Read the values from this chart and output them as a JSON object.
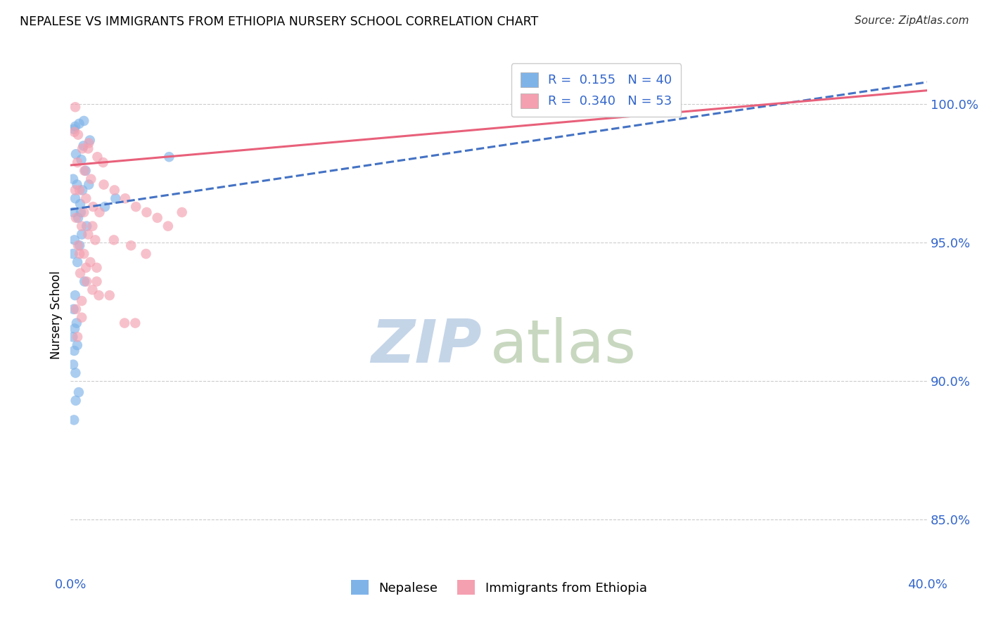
{
  "title": "NEPALESE VS IMMIGRANTS FROM ETHIOPIA NURSERY SCHOOL CORRELATION CHART",
  "source": "Source: ZipAtlas.com",
  "ylabel": "Nursery School",
  "ytick_vals": [
    85.0,
    90.0,
    95.0,
    100.0
  ],
  "xlim": [
    0.0,
    40.0
  ],
  "ylim": [
    83.0,
    101.8
  ],
  "legend_blue_R": "0.155",
  "legend_blue_N": "40",
  "legend_pink_R": "0.340",
  "legend_pink_N": "53",
  "legend_label_blue": "Nepalese",
  "legend_label_pink": "Immigrants from Ethiopia",
  "color_blue": "#7EB3E8",
  "color_pink": "#F4A0B0",
  "color_blue_line": "#4472C4",
  "color_pink_line": "#E8607A",
  "watermark_zip": "ZIP",
  "watermark_atlas": "atlas",
  "watermark_color_zip": "#C5D5E8",
  "watermark_color_atlas": "#C8D8C0",
  "blue_line_x": [
    0.0,
    40.0
  ],
  "blue_line_y": [
    96.2,
    100.8
  ],
  "pink_line_x": [
    0.0,
    40.0
  ],
  "pink_line_y": [
    97.8,
    100.5
  ],
  "blue_points": [
    [
      0.15,
      99.1
    ],
    [
      0.4,
      99.3
    ],
    [
      0.6,
      98.5
    ],
    [
      0.9,
      98.7
    ],
    [
      0.25,
      98.2
    ],
    [
      0.5,
      98.0
    ],
    [
      0.7,
      97.6
    ],
    [
      0.12,
      97.3
    ],
    [
      0.3,
      97.1
    ],
    [
      0.55,
      96.9
    ],
    [
      0.22,
      96.6
    ],
    [
      0.45,
      96.4
    ],
    [
      0.13,
      96.1
    ],
    [
      0.35,
      95.9
    ],
    [
      0.75,
      95.6
    ],
    [
      0.52,
      95.3
    ],
    [
      0.18,
      95.1
    ],
    [
      0.42,
      94.9
    ],
    [
      0.11,
      94.6
    ],
    [
      0.32,
      94.3
    ],
    [
      0.65,
      93.6
    ],
    [
      0.21,
      93.1
    ],
    [
      0.14,
      92.6
    ],
    [
      0.28,
      92.1
    ],
    [
      0.19,
      91.9
    ],
    [
      0.1,
      91.6
    ],
    [
      0.31,
      91.3
    ],
    [
      0.17,
      91.1
    ],
    [
      0.12,
      90.6
    ],
    [
      0.23,
      90.3
    ],
    [
      0.38,
      89.6
    ],
    [
      0.24,
      89.3
    ],
    [
      0.16,
      88.6
    ],
    [
      1.6,
      96.3
    ],
    [
      2.1,
      96.6
    ],
    [
      0.22,
      99.2
    ],
    [
      0.62,
      99.4
    ],
    [
      0.85,
      97.1
    ],
    [
      0.48,
      96.1
    ],
    [
      4.6,
      98.1
    ]
  ],
  "pink_points": [
    [
      0.22,
      99.9
    ],
    [
      0.18,
      99.0
    ],
    [
      0.55,
      98.4
    ],
    [
      0.85,
      98.6
    ],
    [
      1.25,
      98.1
    ],
    [
      0.32,
      97.9
    ],
    [
      0.65,
      97.6
    ],
    [
      0.95,
      97.3
    ],
    [
      1.55,
      97.1
    ],
    [
      0.42,
      96.9
    ],
    [
      0.72,
      96.6
    ],
    [
      1.05,
      96.3
    ],
    [
      1.35,
      96.1
    ],
    [
      0.25,
      95.9
    ],
    [
      0.52,
      95.6
    ],
    [
      0.82,
      95.3
    ],
    [
      1.15,
      95.1
    ],
    [
      0.35,
      94.9
    ],
    [
      0.62,
      94.6
    ],
    [
      0.92,
      94.3
    ],
    [
      1.22,
      94.1
    ],
    [
      0.45,
      93.9
    ],
    [
      0.75,
      93.6
    ],
    [
      1.02,
      93.3
    ],
    [
      1.32,
      93.1
    ],
    [
      2.05,
      96.9
    ],
    [
      2.55,
      96.6
    ],
    [
      3.05,
      96.3
    ],
    [
      3.55,
      96.1
    ],
    [
      4.05,
      95.9
    ],
    [
      4.55,
      95.6
    ],
    [
      0.25,
      92.6
    ],
    [
      0.52,
      92.3
    ],
    [
      2.52,
      92.1
    ],
    [
      3.02,
      92.1
    ],
    [
      5.2,
      96.1
    ],
    [
      22.5,
      100.4
    ],
    [
      27.2,
      100.2
    ],
    [
      0.35,
      98.9
    ],
    [
      0.82,
      98.4
    ],
    [
      1.52,
      97.9
    ],
    [
      0.22,
      96.9
    ],
    [
      0.62,
      96.1
    ],
    [
      1.02,
      95.6
    ],
    [
      0.42,
      94.6
    ],
    [
      0.72,
      94.1
    ],
    [
      1.22,
      93.6
    ],
    [
      2.02,
      95.1
    ],
    [
      2.82,
      94.9
    ],
    [
      3.52,
      94.6
    ],
    [
      1.82,
      93.1
    ],
    [
      0.52,
      92.9
    ],
    [
      0.32,
      91.6
    ]
  ]
}
